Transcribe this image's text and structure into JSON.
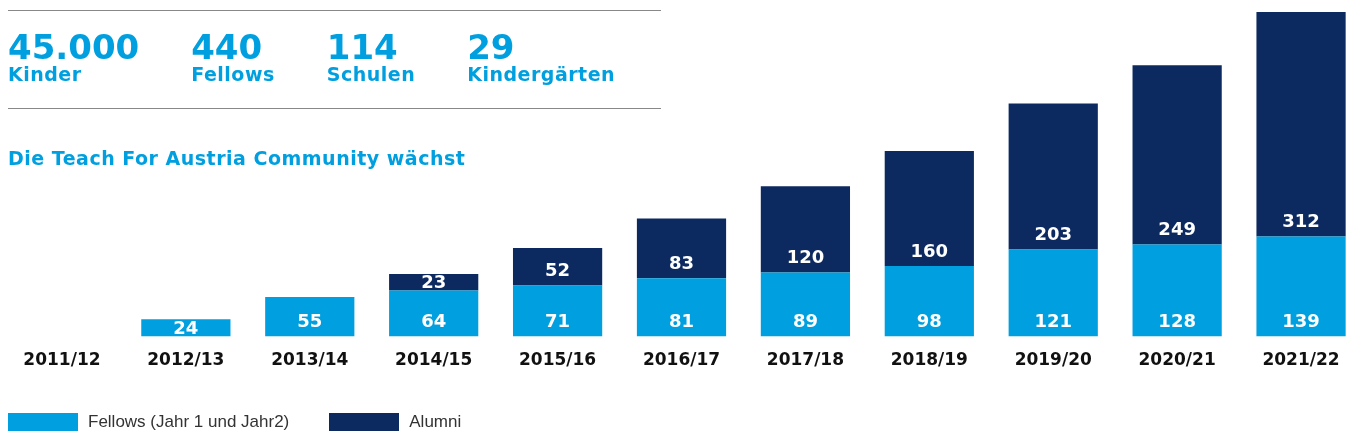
{
  "chart_data": {
    "type": "bar",
    "title": "Die Teach For Austria Community wächst",
    "annotations": [
      "45.000\nKinder",
      "440\nFellows",
      "114\nSchulen",
      "29\nKindergärten"
    ],
    "categories": [
      "2011/12",
      "2012/13",
      "2013/14",
      "2014/15",
      "2015/16",
      "2016/17",
      "2017/18",
      "2018/19",
      "2019/20",
      "2020/21",
      "2021/22"
    ],
    "stacked": true,
    "data_labels": true,
    "legend": "bottom left",
    "grid": false,
    "series": [
      {
        "name": "Fellows (Jahr 1 und Jahr2)",
        "color": "#009fdf",
        "values": [
          null,
          24,
          55,
          64,
          71,
          81,
          89,
          98,
          121,
          128,
          139
        ]
      },
      {
        "name": "Alumni",
        "color": "#0c2a60",
        "values": [
          null,
          null,
          null,
          23,
          52,
          83,
          120,
          160,
          203,
          249,
          312
        ]
      }
    ]
  }
}
